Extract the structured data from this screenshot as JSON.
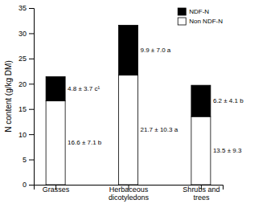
{
  "chart_data": {
    "type": "bar",
    "stacked": true,
    "categories": [
      "Grasses",
      "Herbaceous\ndicotyledons",
      "Shrubs and\ntrees"
    ],
    "series": [
      {
        "name": "Non NDF-N",
        "color": "#ffffff",
        "values": [
          16.6,
          21.7,
          13.5
        ],
        "value_labels": [
          "16.6 ± 7.1 b",
          "21.7 ± 10.3 a",
          "13.5 ± 9.3"
        ]
      },
      {
        "name": "NDF-N",
        "color": "#000000",
        "values": [
          4.8,
          9.9,
          6.2
        ],
        "value_labels": [
          "4.8 ± 3.7 c¹",
          "9.9 ± 7.0 a",
          "6.2 ± 4.1 b"
        ]
      }
    ],
    "ylabel": "N content (g/kg DM)",
    "ylim": [
      0,
      35
    ],
    "yticks": [
      0,
      5,
      10,
      15,
      20,
      25,
      30,
      35
    ],
    "data_labels": true,
    "legend": "upper right",
    "grid": false
  }
}
